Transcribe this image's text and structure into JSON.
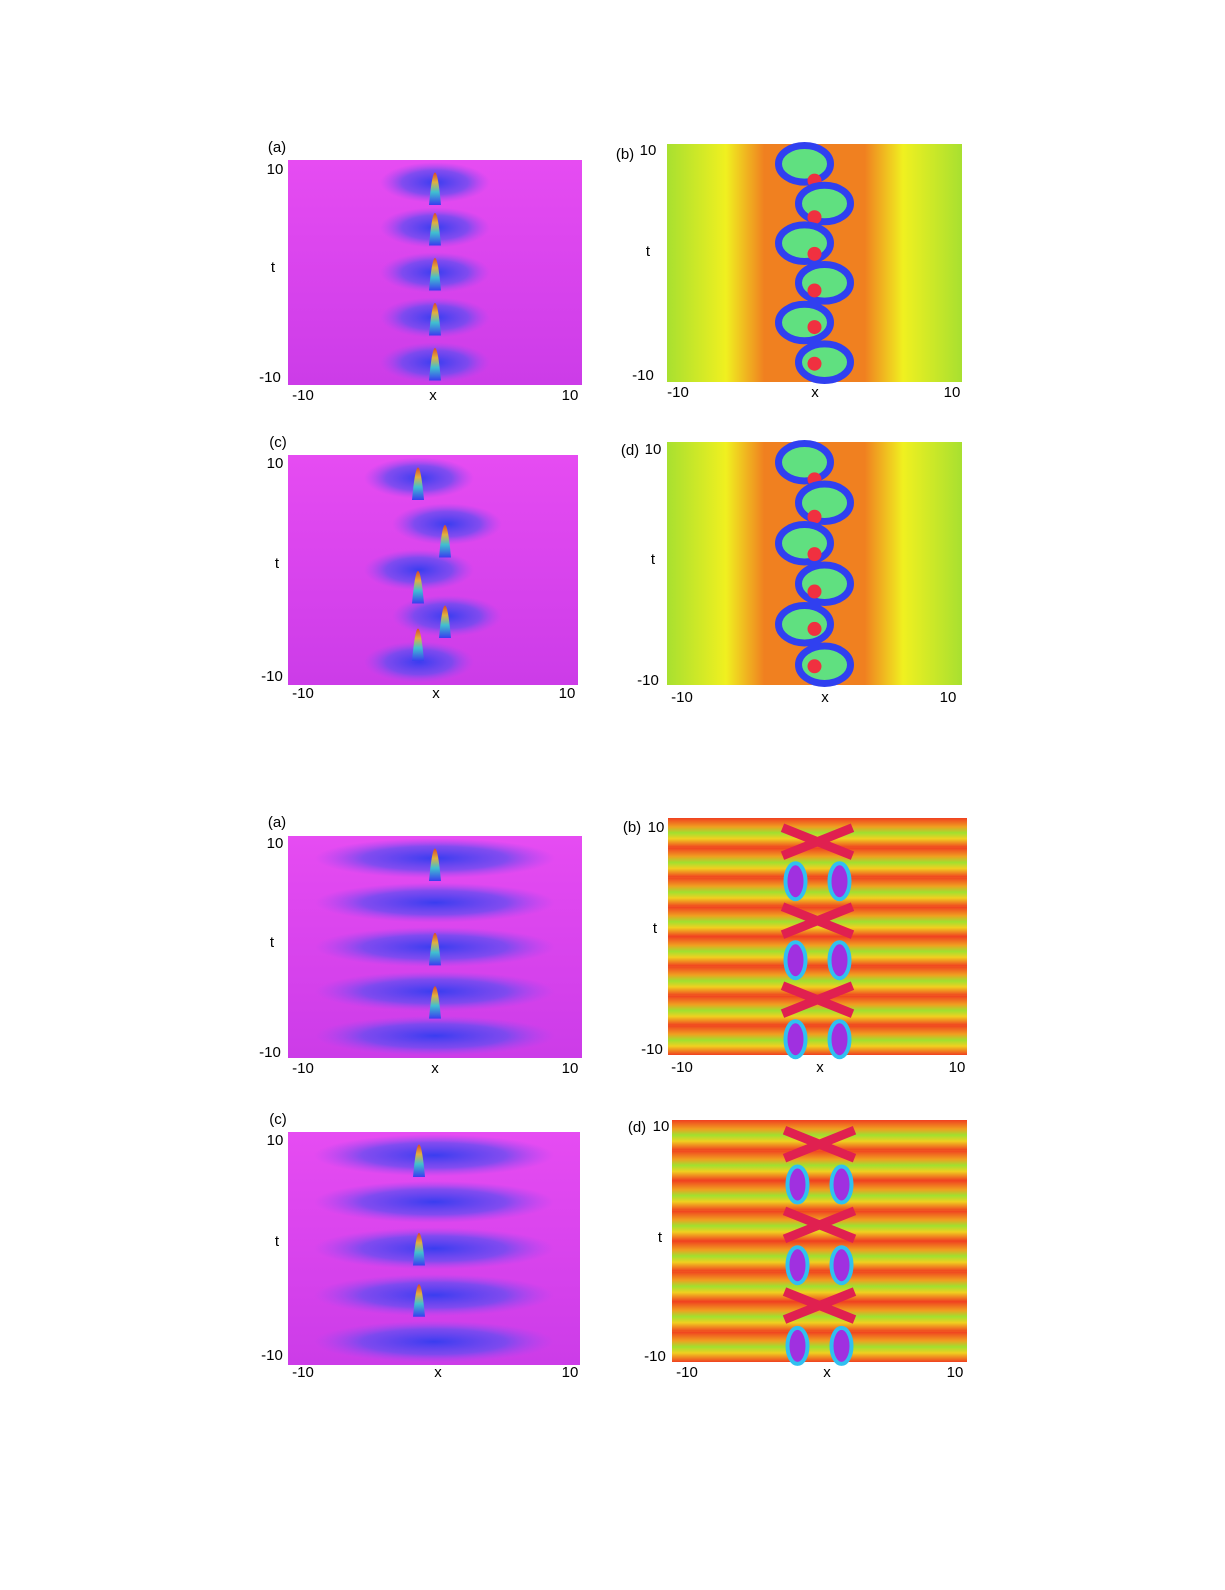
{
  "figures": [
    {
      "panels": [
        {
          "label": "(a)",
          "x_label": "x",
          "y_label": "t",
          "x_ticks": [
            -10,
            10
          ],
          "y_ticks": [
            -10,
            10
          ]
        },
        {
          "label": "(b)",
          "x_label": "x",
          "y_label": "t",
          "x_ticks": [
            -10,
            10
          ],
          "y_ticks": [
            -10,
            10
          ]
        },
        {
          "label": "(c)",
          "x_label": "x",
          "y_label": "t",
          "x_ticks": [
            -10,
            10
          ],
          "y_ticks": [
            -10,
            10
          ]
        },
        {
          "label": "(d)",
          "x_label": "x",
          "y_label": "t",
          "x_ticks": [
            -10,
            10
          ],
          "y_ticks": [
            -10,
            10
          ]
        }
      ]
    },
    {
      "panels": [
        {
          "label": "(a)",
          "x_label": "x",
          "y_label": "t",
          "x_ticks": [
            -10,
            10
          ],
          "y_ticks": [
            -10,
            10
          ]
        },
        {
          "label": "(b)",
          "x_label": "x",
          "y_label": "t",
          "x_ticks": [
            -10,
            10
          ],
          "y_ticks": [
            -10,
            10
          ]
        },
        {
          "label": "(c)",
          "x_label": "x",
          "y_label": "t",
          "x_ticks": [
            -10,
            10
          ],
          "y_ticks": [
            -10,
            10
          ]
        },
        {
          "label": "(d)",
          "x_label": "x",
          "y_label": "t",
          "x_ticks": [
            -10,
            10
          ],
          "y_ticks": [
            -10,
            10
          ]
        }
      ]
    }
  ]
}
